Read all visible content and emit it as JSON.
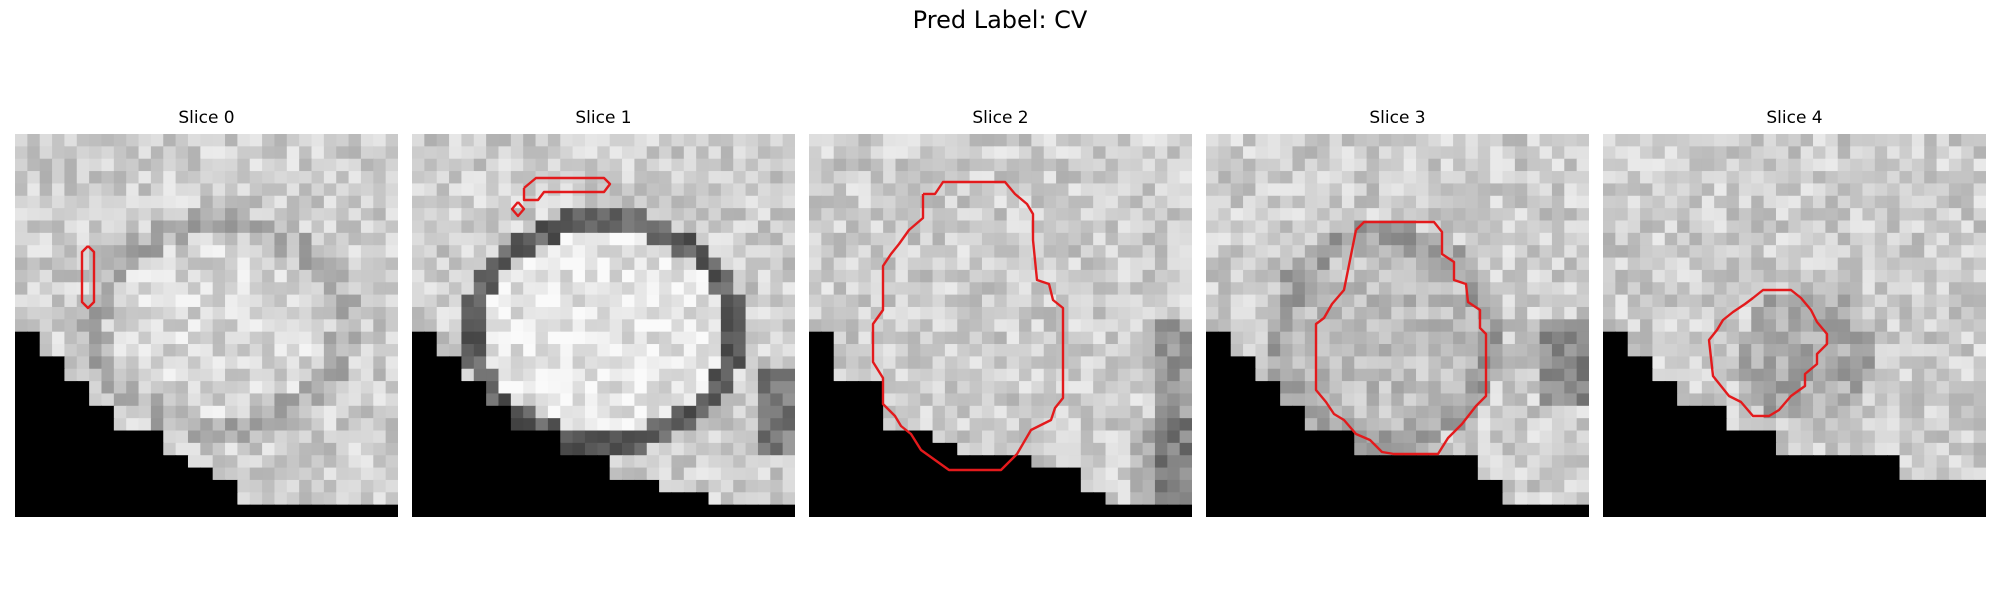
{
  "figure": {
    "title": "Pred Label: CV"
  },
  "panels": [
    {
      "title": "Slice 0"
    },
    {
      "title": "Slice 1"
    },
    {
      "title": "Slice 2"
    },
    {
      "title": "Slice 3"
    },
    {
      "title": "Slice 4"
    }
  ],
  "colors": {
    "contour": "#e31a1c",
    "background": "#ffffff",
    "masked_region": "#000000"
  }
}
